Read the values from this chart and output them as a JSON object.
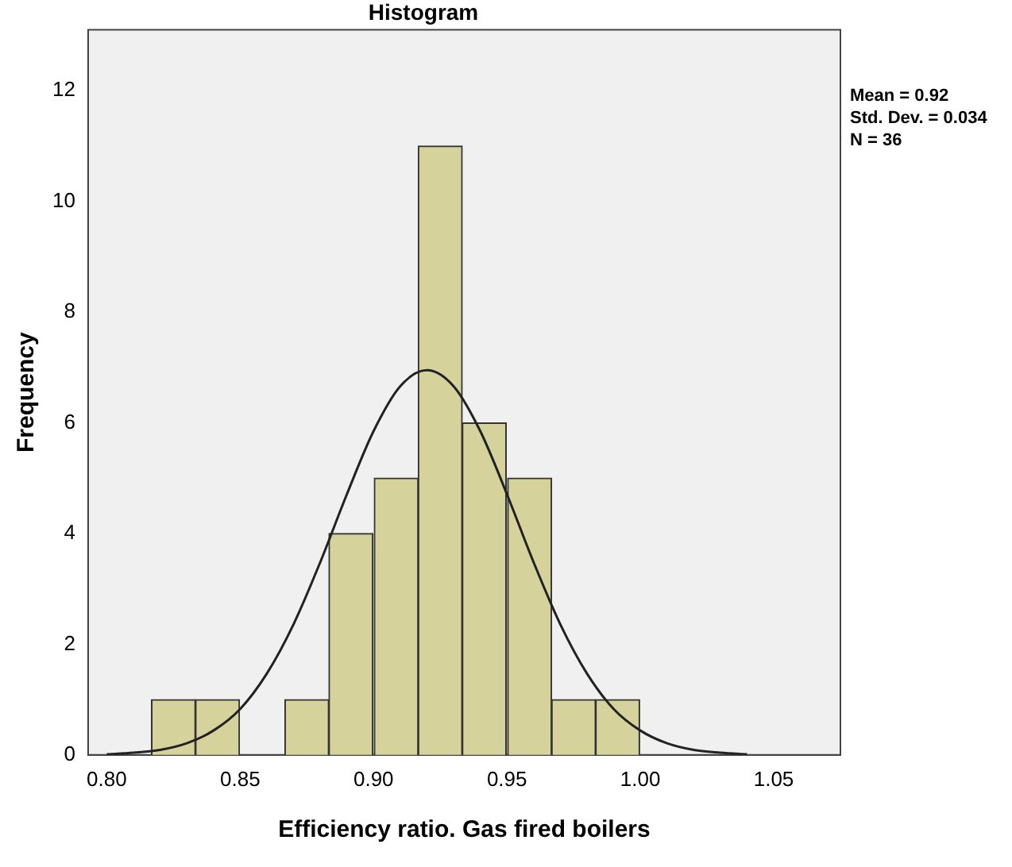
{
  "chart_data": {
    "type": "histogram",
    "title": "Histogram",
    "xlabel": "Efficiency ratio. Gas fired boilers",
    "ylabel": "Frequency",
    "bins": [
      0.817,
      0.833,
      0.85,
      0.867,
      0.883,
      0.9,
      0.917,
      0.933,
      0.95,
      0.967,
      0.983,
      1.0
    ],
    "values": [
      1,
      1,
      0,
      1,
      4,
      5,
      11,
      6,
      5,
      1,
      1
    ],
    "color": "#d5d29c",
    "series": [
      {
        "type": "line",
        "color": "#222222",
        "x": [
          0.8,
          0.81,
          0.82,
          0.83,
          0.84,
          0.85,
          0.86,
          0.87,
          0.88,
          0.89,
          0.9,
          0.91,
          0.92,
          0.93,
          0.94,
          0.95,
          0.96,
          0.97,
          0.98,
          0.99,
          1.0,
          1.01,
          1.02,
          1.03,
          1.04
        ],
        "values": [
          0.01,
          0.04,
          0.09,
          0.21,
          0.44,
          0.83,
          1.47,
          2.36,
          3.48,
          4.71,
          5.85,
          6.66,
          6.95,
          6.66,
          5.85,
          4.71,
          3.48,
          2.36,
          1.47,
          0.83,
          0.44,
          0.21,
          0.09,
          0.04,
          0.01
        ]
      }
    ],
    "xlim": [
      0.793,
      1.075
    ],
    "xticks": [
      {
        "value": 0.8,
        "label": "0.80"
      },
      {
        "value": 0.85,
        "label": "0.85"
      },
      {
        "value": 0.9,
        "label": "0.90"
      },
      {
        "value": 0.95,
        "label": "0.95"
      },
      {
        "value": 1.0,
        "label": "1.00"
      },
      {
        "value": 1.05,
        "label": "1.05"
      }
    ],
    "ylim": [
      0,
      13.1
    ],
    "yticks": [
      0,
      2,
      4,
      6,
      8,
      10,
      12
    ],
    "annotations": [
      "Mean = 0.92",
      "Std. Dev. = 0.034",
      "N = 36"
    ],
    "grid": false,
    "legend": false,
    "marker": "none"
  }
}
